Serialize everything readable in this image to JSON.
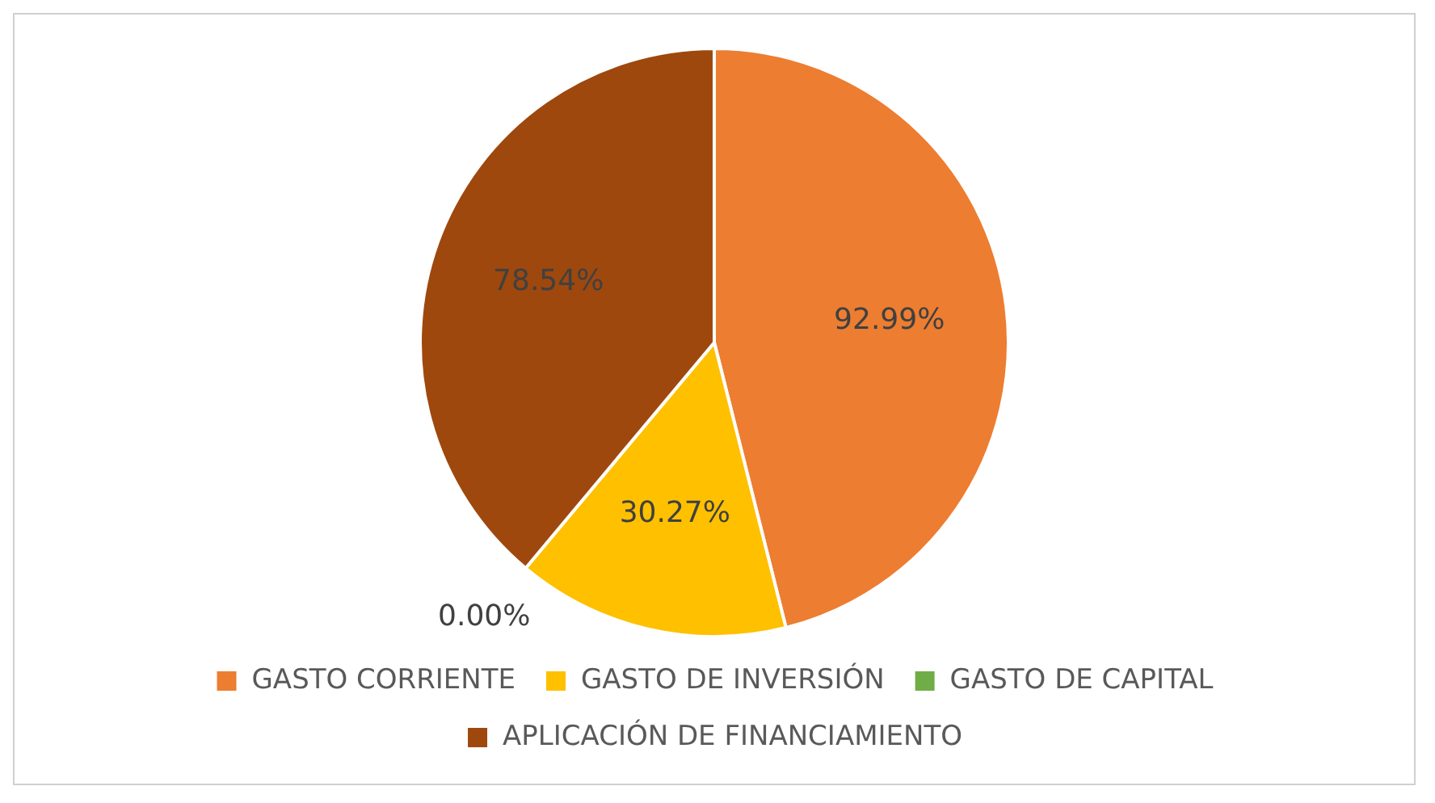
{
  "chart_data": {
    "type": "pie",
    "categories": [
      "GASTO CORRIENTE",
      "GASTO DE INVERSIÓN",
      "GASTO DE CAPITAL",
      "APLICACIÓN DE FINANCIAMIENTO"
    ],
    "values": [
      92.99,
      30.27,
      0.0,
      78.54
    ],
    "colors": [
      "#ed7d31",
      "#ffc000",
      "#70ad47",
      "#9e480e"
    ],
    "value_labels": [
      "92.99%",
      "30.27%",
      "0.00%",
      "78.54%"
    ],
    "legend": "bottom"
  }
}
